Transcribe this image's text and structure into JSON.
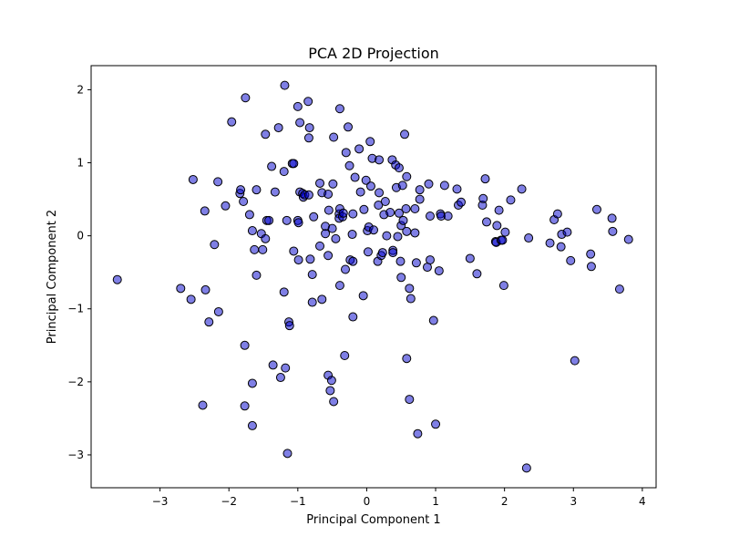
{
  "chart_data": {
    "type": "scatter",
    "title": "PCA 2D Projection",
    "xlabel": "Principal Component 1",
    "ylabel": "Principal Component 2",
    "xlim": [
      -4.0,
      4.2
    ],
    "ylim": [
      -3.45,
      2.33
    ],
    "xticks": [
      -3,
      -2,
      -1,
      0,
      1,
      2,
      3,
      4
    ],
    "xtick_labels": [
      "−3",
      "−2",
      "−1",
      "0",
      "1",
      "2",
      "3",
      "4"
    ],
    "yticks": [
      -3,
      -2,
      -1,
      0,
      1,
      2
    ],
    "ytick_labels": [
      "−3",
      "−2",
      "−1",
      "0",
      "1",
      "2"
    ],
    "grid": false,
    "marker_color": "#0000cc",
    "marker_opacity": 0.5,
    "marker_edge_color": "#000000",
    "series": [
      {
        "points": [
          [
            -3.62,
            -0.6
          ],
          [
            -2.7,
            -0.72
          ],
          [
            -2.55,
            -0.87
          ],
          [
            -2.52,
            0.77
          ],
          [
            -2.35,
            0.34
          ],
          [
            -2.34,
            -0.74
          ],
          [
            -2.29,
            -1.18
          ],
          [
            -2.38,
            -2.32
          ],
          [
            -2.21,
            -0.12
          ],
          [
            -2.16,
            0.74
          ],
          [
            -2.15,
            -1.04
          ],
          [
            -2.05,
            0.41
          ],
          [
            -1.96,
            1.56
          ],
          [
            -1.84,
            0.58
          ],
          [
            -1.83,
            0.63
          ],
          [
            -1.79,
            0.47
          ],
          [
            -1.76,
            1.89
          ],
          [
            -1.77,
            -1.5
          ],
          [
            -1.77,
            -2.33
          ],
          [
            -1.7,
            0.29
          ],
          [
            -1.66,
            0.07
          ],
          [
            -1.63,
            -0.19
          ],
          [
            -1.6,
            0.63
          ],
          [
            -1.6,
            -0.54
          ],
          [
            -1.66,
            -2.02
          ],
          [
            -1.66,
            -2.6
          ],
          [
            -1.53,
            0.03
          ],
          [
            -1.51,
            -0.19
          ],
          [
            -1.47,
            1.39
          ],
          [
            -1.47,
            -0.04
          ],
          [
            -1.45,
            0.21
          ],
          [
            -1.42,
            0.21
          ],
          [
            -1.38,
            0.95
          ],
          [
            -1.33,
            0.6
          ],
          [
            -1.36,
            -1.77
          ],
          [
            -1.28,
            1.48
          ],
          [
            -1.25,
            -1.94
          ],
          [
            -1.2,
            0.88
          ],
          [
            -1.18,
            -1.81
          ],
          [
            -1.2,
            -0.77
          ],
          [
            -1.19,
            2.06
          ],
          [
            -1.16,
            0.21
          ],
          [
            -1.13,
            -1.18
          ],
          [
            -1.12,
            -1.23
          ],
          [
            -1.15,
            -2.98
          ],
          [
            -1.08,
            0.99
          ],
          [
            -1.06,
            0.99
          ],
          [
            -1.06,
            -0.21
          ],
          [
            -1.0,
            1.77
          ],
          [
            -1.0,
            0.21
          ],
          [
            -0.99,
            0.18
          ],
          [
            -0.99,
            -0.33
          ],
          [
            -0.97,
            1.55
          ],
          [
            -0.97,
            0.6
          ],
          [
            -0.93,
            0.58
          ],
          [
            -0.92,
            0.53
          ],
          [
            -0.9,
            0.56
          ],
          [
            -0.85,
            1.84
          ],
          [
            -0.84,
            1.34
          ],
          [
            -0.83,
            1.48
          ],
          [
            -0.84,
            0.56
          ],
          [
            -0.82,
            -0.32
          ],
          [
            -0.79,
            -0.53
          ],
          [
            -0.79,
            -0.91
          ],
          [
            -0.77,
            0.26
          ],
          [
            -0.68,
            0.72
          ],
          [
            -0.68,
            -0.14
          ],
          [
            -0.65,
            0.59
          ],
          [
            -0.65,
            -0.87
          ],
          [
            -0.6,
            0.13
          ],
          [
            -0.6,
            0.03
          ],
          [
            -0.56,
            -0.27
          ],
          [
            -0.56,
            0.57
          ],
          [
            -0.55,
            0.35
          ],
          [
            -0.56,
            -1.91
          ],
          [
            -0.53,
            -2.12
          ],
          [
            -0.51,
            -1.98
          ],
          [
            -0.5,
            0.1
          ],
          [
            -0.49,
            0.71
          ],
          [
            -0.48,
            1.35
          ],
          [
            -0.48,
            -2.27
          ],
          [
            -0.45,
            -0.04
          ],
          [
            -0.4,
            0.3
          ],
          [
            -0.4,
            0.24
          ],
          [
            -0.39,
            0.37
          ],
          [
            -0.39,
            1.74
          ],
          [
            -0.39,
            -0.68
          ],
          [
            -0.35,
            0.26
          ],
          [
            -0.34,
            0.31
          ],
          [
            -0.32,
            -1.64
          ],
          [
            -0.31,
            -0.46
          ],
          [
            -0.3,
            1.14
          ],
          [
            -0.27,
            1.49
          ],
          [
            -0.25,
            0.96
          ],
          [
            -0.24,
            -0.33
          ],
          [
            -0.21,
            0.02
          ],
          [
            -0.2,
            -0.35
          ],
          [
            -0.2,
            0.3
          ],
          [
            -0.2,
            -1.11
          ],
          [
            -0.17,
            0.8
          ],
          [
            -0.11,
            1.19
          ],
          [
            -0.09,
            0.6
          ],
          [
            -0.05,
            -0.82
          ],
          [
            -0.04,
            0.36
          ],
          [
            -0.01,
            0.76
          ],
          [
            0.01,
            0.07
          ],
          [
            0.02,
            -0.22
          ],
          [
            0.03,
            0.12
          ],
          [
            0.05,
            1.29
          ],
          [
            0.06,
            0.68
          ],
          [
            0.08,
            1.06
          ],
          [
            0.1,
            0.08
          ],
          [
            0.16,
            -0.35
          ],
          [
            0.17,
            0.42
          ],
          [
            0.18,
            1.04
          ],
          [
            0.18,
            0.59
          ],
          [
            0.21,
            -0.27
          ],
          [
            0.23,
            -0.23
          ],
          [
            0.25,
            0.29
          ],
          [
            0.27,
            0.47
          ],
          [
            0.29,
            0.0
          ],
          [
            0.34,
            0.32
          ],
          [
            0.37,
            1.04
          ],
          [
            0.38,
            -0.2
          ],
          [
            0.38,
            -0.23
          ],
          [
            0.42,
            0.97
          ],
          [
            0.43,
            0.66
          ],
          [
            0.45,
            -0.01
          ],
          [
            0.47,
            0.31
          ],
          [
            0.47,
            0.93
          ],
          [
            0.49,
            -0.35
          ],
          [
            0.5,
            0.14
          ],
          [
            0.5,
            -0.57
          ],
          [
            0.52,
            0.69
          ],
          [
            0.53,
            0.21
          ],
          [
            0.55,
            1.39
          ],
          [
            0.57,
            0.37
          ],
          [
            0.58,
            0.81
          ],
          [
            0.58,
            0.06
          ],
          [
            0.58,
            -1.68
          ],
          [
            0.62,
            -0.72
          ],
          [
            0.62,
            -2.24
          ],
          [
            0.64,
            -0.86
          ],
          [
            0.7,
            0.37
          ],
          [
            0.7,
            0.04
          ],
          [
            0.72,
            -0.37
          ],
          [
            0.74,
            -2.71
          ],
          [
            0.77,
            0.5
          ],
          [
            0.77,
            0.63
          ],
          [
            0.88,
            -0.43
          ],
          [
            0.9,
            0.71
          ],
          [
            0.92,
            -0.33
          ],
          [
            0.92,
            0.27
          ],
          [
            0.97,
            -1.16
          ],
          [
            1.0,
            -2.58
          ],
          [
            1.05,
            -0.48
          ],
          [
            1.07,
            0.3
          ],
          [
            1.08,
            0.27
          ],
          [
            1.13,
            0.69
          ],
          [
            1.18,
            0.27
          ],
          [
            1.31,
            0.64
          ],
          [
            1.33,
            0.42
          ],
          [
            1.37,
            0.46
          ],
          [
            1.5,
            -0.31
          ],
          [
            1.6,
            -0.52
          ],
          [
            1.68,
            0.42
          ],
          [
            1.69,
            0.51
          ],
          [
            1.72,
            0.78
          ],
          [
            1.74,
            0.19
          ],
          [
            1.87,
            -0.08
          ],
          [
            1.88,
            -0.09
          ],
          [
            1.89,
            0.14
          ],
          [
            1.92,
            0.35
          ],
          [
            1.95,
            -0.06
          ],
          [
            1.97,
            -0.06
          ],
          [
            1.99,
            -0.68
          ],
          [
            2.01,
            0.05
          ],
          [
            2.09,
            0.49
          ],
          [
            2.25,
            0.64
          ],
          [
            2.32,
            -3.18
          ],
          [
            2.35,
            -0.03
          ],
          [
            2.66,
            -0.1
          ],
          [
            2.72,
            0.22
          ],
          [
            2.77,
            0.3
          ],
          [
            2.82,
            -0.15
          ],
          [
            2.83,
            0.02
          ],
          [
            2.91,
            0.05
          ],
          [
            2.96,
            -0.34
          ],
          [
            3.02,
            -1.71
          ],
          [
            3.25,
            -0.25
          ],
          [
            3.26,
            -0.42
          ],
          [
            3.34,
            0.36
          ],
          [
            3.56,
            0.24
          ],
          [
            3.57,
            0.06
          ],
          [
            3.67,
            -0.73
          ],
          [
            3.8,
            -0.05
          ]
        ]
      }
    ]
  }
}
